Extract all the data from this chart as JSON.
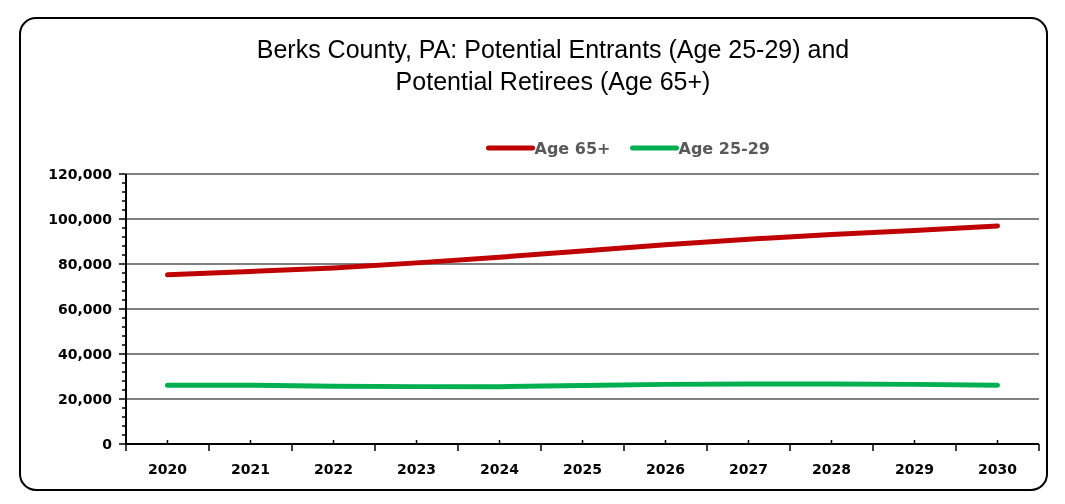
{
  "chart_data": {
    "type": "line",
    "title": "Berks County, PA: Potential Entrants (Age 25-29) and\nPotential Retirees (Age 65+)",
    "categories": [
      "2020",
      "2021",
      "2022",
      "2023",
      "2024",
      "2025",
      "2026",
      "2027",
      "2028",
      "2029",
      "2030"
    ],
    "series": [
      {
        "name": "Age 65+",
        "color": "#c00000",
        "values": [
          75200,
          76700,
          78200,
          80500,
          83000,
          85800,
          88600,
          91000,
          93100,
          94900,
          96900
        ]
      },
      {
        "name": "Age 25-29",
        "color": "#00b050",
        "values": [
          26100,
          26100,
          25700,
          25500,
          25500,
          26000,
          26500,
          26700,
          26700,
          26500,
          26100
        ]
      }
    ],
    "ylim": [
      0,
      120000
    ],
    "yticks": [
      0,
      {
        "value": 4000,
        "label": null
      },
      {
        "value": 8000,
        "label": null
      },
      {
        "value": 12000,
        "label": null
      },
      {
        "value": 16000,
        "label": null
      },
      {
        "value": 20000,
        "label": "20,000"
      },
      {
        "value": 24000,
        "label": null
      },
      {
        "value": 28000,
        "label": null
      },
      {
        "value": 32000,
        "label": null
      },
      {
        "value": 36000,
        "label": null
      },
      {
        "value": 40000,
        "label": "40,000"
      },
      {
        "value": 44000,
        "label": null
      },
      {
        "value": 48000,
        "label": null
      },
      {
        "value": 52000,
        "label": null
      },
      {
        "value": 56000,
        "label": null
      },
      {
        "value": 60000,
        "label": "60,000"
      },
      {
        "value": 64000,
        "label": null
      },
      {
        "value": 68000,
        "label": null
      },
      {
        "value": 72000,
        "label": null
      },
      {
        "value": 76000,
        "label": null
      },
      {
        "value": 80000,
        "label": "80,000"
      },
      {
        "value": 84000,
        "label": null
      },
      {
        "value": 88000,
        "label": null
      },
      {
        "value": 92000,
        "label": null
      },
      {
        "value": 96000,
        "label": null
      },
      {
        "value": 100000,
        "label": "100,000"
      },
      {
        "value": 104000,
        "label": null
      },
      {
        "value": 108000,
        "label": null
      },
      {
        "value": 112000,
        "label": null
      },
      {
        "value": 116000,
        "label": null
      },
      {
        "value": 120000,
        "label": "120,000"
      }
    ],
    "grid": "y",
    "legend": "top",
    "marker": "none",
    "line_style": "solid"
  }
}
